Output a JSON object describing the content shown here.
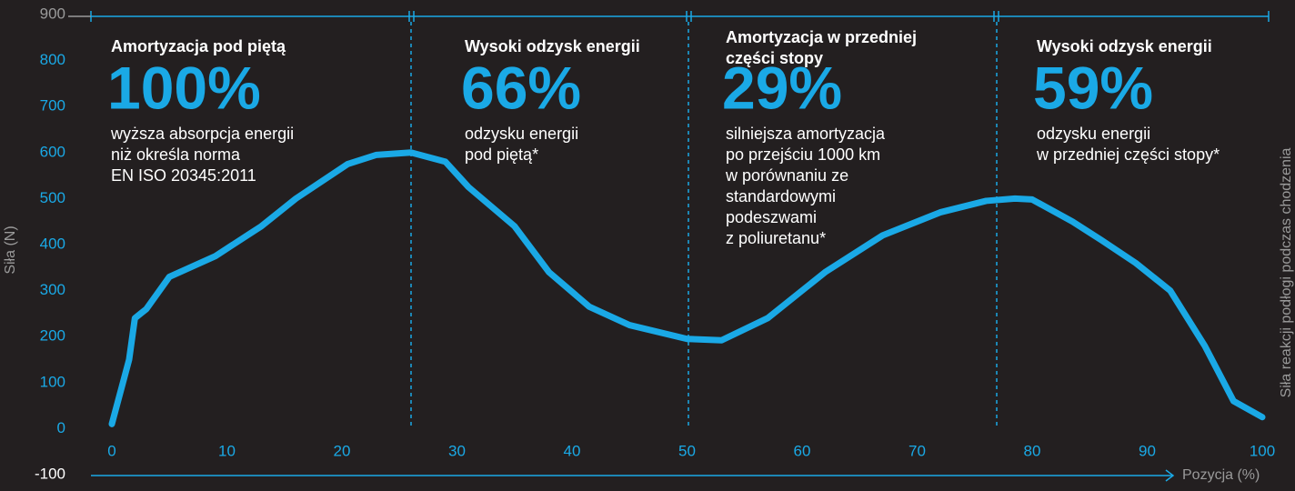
{
  "chart_data": {
    "type": "line",
    "y_label": "Siła (N)",
    "x_label": "Pozycja (%)",
    "side_label": "Siła reakcji podłogi podczas chodzenia",
    "xlim": [
      0,
      100
    ],
    "xticks": [
      0,
      10,
      20,
      30,
      40,
      50,
      60,
      70,
      80,
      90,
      100
    ],
    "ylim": [
      -100,
      900
    ],
    "yticks": [
      -100,
      0,
      100,
      200,
      300,
      400,
      500,
      600,
      700,
      800,
      900
    ],
    "x": [
      0,
      1.5,
      2,
      2.5,
      3,
      5,
      9,
      13,
      16,
      20.5,
      23,
      26,
      29,
      31,
      35,
      38,
      41.5,
      45,
      50,
      53,
      57,
      62,
      67,
      72,
      76,
      78.5,
      80,
      83.5,
      86,
      89,
      92,
      95,
      97.5,
      100
    ],
    "series": [
      {
        "color": "#1aa9e6",
        "values": [
          10,
          150,
          240,
          250,
          260,
          330,
          375,
          440,
          500,
          575,
          595,
          600,
          580,
          525,
          440,
          340,
          265,
          225,
          195,
          192,
          240,
          340,
          420,
          470,
          495,
          500,
          498,
          450,
          410,
          360,
          300,
          180,
          60,
          25
        ]
      }
    ],
    "panels": [
      {
        "title_lines": [
          "Amortyzacja pod piętą"
        ],
        "figure": "100%",
        "description_lines": [
          "wyższa absorpcja energii",
          "niż określa norma",
          "EN ISO 20345:2011"
        ]
      },
      {
        "title_lines": [
          "Wysoki odzysk energii"
        ],
        "figure": "66%",
        "description_lines": [
          "odzysku energii",
          "pod piętą*"
        ]
      },
      {
        "title_lines": [
          "Amortyzacja w przedniej",
          "części stopy"
        ],
        "figure": "29%",
        "description_lines": [
          "silniejsza amortyzacja",
          "po przejściu 1000 km",
          "w porównaniu ze",
          "standardowymi",
          "podeszwami",
          "z poliuretanu*"
        ]
      },
      {
        "title_lines": [
          "Wysoki odzysk energii"
        ],
        "figure": "59%",
        "description_lines": [
          "odzysku energii",
          "w przedniej części stopy*"
        ]
      }
    ]
  }
}
